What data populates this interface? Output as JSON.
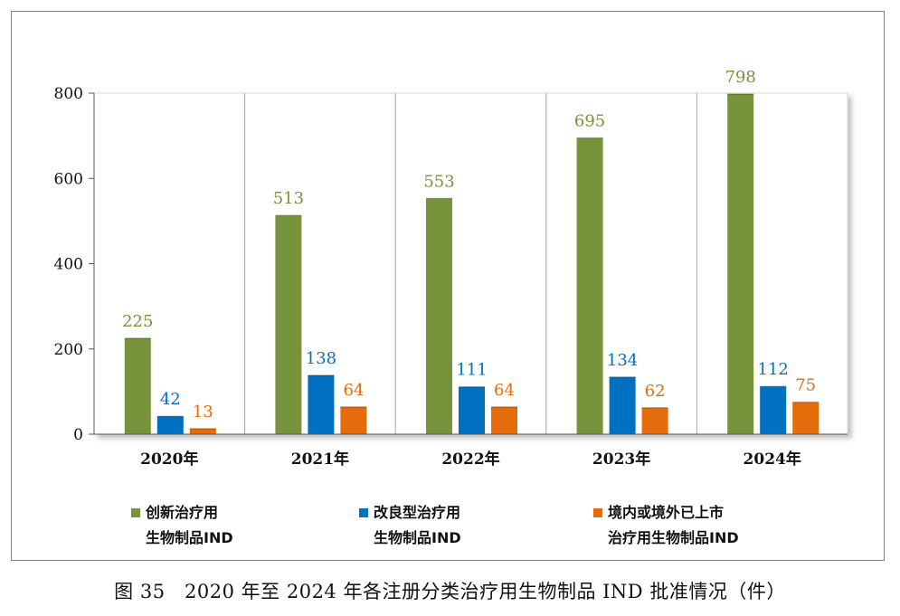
{
  "chart_data": {
    "type": "bar",
    "categories": [
      "2020年",
      "2021年",
      "2022年",
      "2023年",
      "2024年"
    ],
    "series": [
      {
        "name": "创新治疗用生物制品IND",
        "legend_lines": [
          "创新治疗用",
          "生物制品IND"
        ],
        "color": "#77933c",
        "values": [
          225,
          513,
          553,
          695,
          798
        ]
      },
      {
        "name": "改良型治疗用生物制品IND",
        "legend_lines": [
          "改良型治疗用",
          "生物制品IND"
        ],
        "color": "#0070c0",
        "values": [
          42,
          138,
          111,
          134,
          112
        ]
      },
      {
        "name": "境内或境外已上市治疗用生物制品IND",
        "legend_lines": [
          "境内或境外已上市",
          "治疗用生物制品IND"
        ],
        "color": "#e46c0a",
        "values": [
          13,
          64,
          64,
          62,
          75
        ]
      }
    ],
    "ylim": [
      0,
      800
    ],
    "yticks": [
      0,
      200,
      400,
      600,
      800
    ],
    "legend_position": "bottom",
    "title": "图 35　2020 年至 2024 年各注册分类治疗用生物制品 IND 批准情况（件）"
  }
}
